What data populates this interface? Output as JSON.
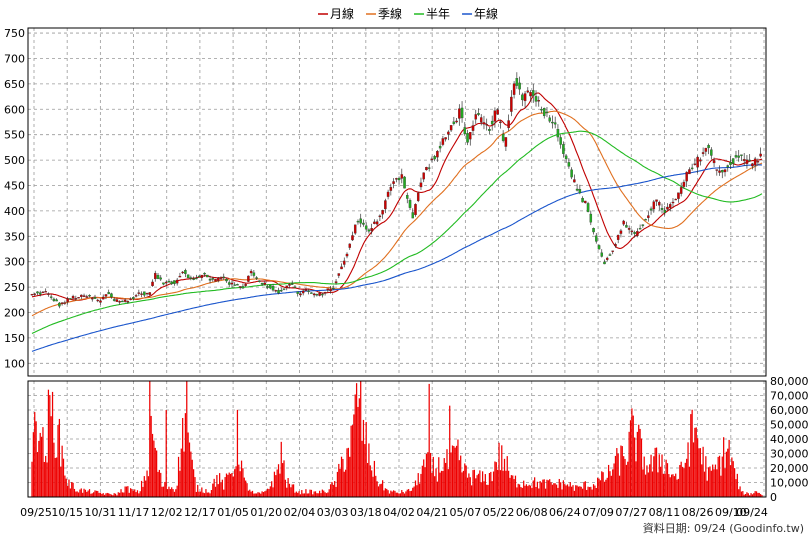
{
  "chart_data": {
    "type": "candlestick",
    "legend": [
      {
        "name": "月線",
        "color": "#c00000"
      },
      {
        "name": "季線",
        "color": "#e07020"
      },
      {
        "name": "半年",
        "color": "#22bb22"
      },
      {
        "name": "年線",
        "color": "#1a55cc"
      }
    ],
    "legend_position": "top-center",
    "grid": true,
    "price_axis": {
      "min": 75,
      "max": 760,
      "ticks": [
        100,
        150,
        200,
        250,
        300,
        350,
        400,
        450,
        500,
        550,
        600,
        650,
        700,
        750
      ]
    },
    "volume_axis": {
      "max": 80000,
      "ticks": [
        0,
        10000,
        20000,
        30000,
        40000,
        50000,
        60000,
        70000,
        80000
      ],
      "tick_labels": [
        "0",
        "10,000",
        "20,000",
        "30,000",
        "40,000",
        "50,000",
        "60,000",
        "70,000",
        "80,000"
      ]
    },
    "x_ticks": [
      "09/25",
      "10/15",
      "10/31",
      "11/17",
      "12/02",
      "12/17",
      "01/05",
      "01/20",
      "02/04",
      "03/03",
      "03/18",
      "04/02",
      "04/21",
      "05/07",
      "05/22",
      "06/08",
      "06/24",
      "07/09",
      "07/27",
      "08/11",
      "08/26",
      "09/10",
      "09/24"
    ],
    "footer": "資料日期: 09/24  (Goodinfo.tw)",
    "colors": {
      "up": "#cc0000",
      "down": "#22aa22",
      "volume": "#ee0000"
    },
    "close_keypoints": [
      [
        0,
        235
      ],
      [
        10,
        240
      ],
      [
        20,
        215
      ],
      [
        30,
        230
      ],
      [
        40,
        232
      ],
      [
        50,
        222
      ],
      [
        55,
        240
      ],
      [
        60,
        225
      ],
      [
        70,
        222
      ],
      [
        78,
        238
      ],
      [
        85,
        235
      ],
      [
        90,
        275
      ],
      [
        95,
        258
      ],
      [
        105,
        260
      ],
      [
        110,
        282
      ],
      [
        118,
        262
      ],
      [
        125,
        278
      ],
      [
        130,
        262
      ],
      [
        140,
        270
      ],
      [
        145,
        255
      ],
      [
        155,
        250
      ],
      [
        160,
        285
      ],
      [
        165,
        262
      ],
      [
        170,
        255
      ],
      [
        180,
        240
      ],
      [
        190,
        258
      ],
      [
        195,
        235
      ],
      [
        200,
        245
      ],
      [
        207,
        232
      ],
      [
        215,
        242
      ],
      [
        220,
        250
      ],
      [
        228,
        300
      ],
      [
        238,
        385
      ],
      [
        245,
        360
      ],
      [
        255,
        390
      ],
      [
        263,
        460
      ],
      [
        270,
        470
      ],
      [
        278,
        385
      ],
      [
        285,
        470
      ],
      [
        295,
        510
      ],
      [
        305,
        560
      ],
      [
        313,
        600
      ],
      [
        318,
        530
      ],
      [
        325,
        590
      ],
      [
        333,
        560
      ],
      [
        340,
        600
      ],
      [
        345,
        520
      ],
      [
        352,
        660
      ],
      [
        358,
        625
      ],
      [
        365,
        640
      ],
      [
        372,
        600
      ],
      [
        380,
        580
      ],
      [
        390,
        505
      ],
      [
        398,
        440
      ],
      [
        405,
        410
      ],
      [
        412,
        340
      ],
      [
        418,
        295
      ],
      [
        425,
        330
      ],
      [
        432,
        375
      ],
      [
        440,
        350
      ],
      [
        448,
        385
      ],
      [
        455,
        420
      ],
      [
        462,
        400
      ],
      [
        470,
        420
      ],
      [
        478,
        470
      ],
      [
        485,
        495
      ],
      [
        493,
        530
      ],
      [
        500,
        480
      ],
      [
        508,
        485
      ],
      [
        515,
        510
      ],
      [
        520,
        500
      ],
      [
        527,
        495
      ],
      [
        533,
        510
      ]
    ],
    "volume_profile": [
      [
        0,
        30000
      ],
      [
        5,
        62000
      ],
      [
        9,
        25000
      ],
      [
        14,
        60000
      ],
      [
        18,
        45000
      ],
      [
        22,
        30000
      ],
      [
        26,
        10000
      ],
      [
        33,
        5000
      ],
      [
        40,
        4000
      ],
      [
        48,
        3000
      ],
      [
        55,
        2000
      ],
      [
        62,
        2000
      ],
      [
        68,
        6000
      ],
      [
        78,
        3000
      ],
      [
        85,
        20000
      ],
      [
        86,
        62000
      ],
      [
        90,
        30000
      ],
      [
        95,
        8000
      ],
      [
        105,
        6000
      ],
      [
        110,
        42000
      ],
      [
        113,
        68000
      ],
      [
        115,
        30000
      ],
      [
        120,
        6000
      ],
      [
        130,
        4000
      ],
      [
        135,
        14000
      ],
      [
        140,
        8000
      ],
      [
        148,
        22000
      ],
      [
        150,
        42000
      ],
      [
        155,
        10000
      ],
      [
        162,
        2000
      ],
      [
        170,
        3000
      ],
      [
        178,
        14000
      ],
      [
        182,
        30000
      ],
      [
        186,
        10000
      ],
      [
        195,
        3000
      ],
      [
        200,
        4000
      ],
      [
        207,
        3000
      ],
      [
        215,
        4000
      ],
      [
        222,
        10000
      ],
      [
        228,
        28000
      ],
      [
        234,
        40000
      ],
      [
        238,
        72000
      ],
      [
        242,
        45000
      ],
      [
        246,
        28000
      ],
      [
        252,
        12000
      ],
      [
        260,
        4000
      ],
      [
        267,
        3000
      ],
      [
        275,
        4000
      ],
      [
        280,
        8000
      ],
      [
        285,
        20000
      ],
      [
        290,
        22000
      ],
      [
        295,
        18000
      ],
      [
        300,
        24000
      ],
      [
        305,
        22000
      ],
      [
        310,
        30000
      ],
      [
        315,
        18000
      ],
      [
        320,
        14000
      ],
      [
        325,
        14000
      ],
      [
        330,
        12000
      ],
      [
        335,
        14000
      ],
      [
        340,
        28000
      ],
      [
        345,
        25000
      ],
      [
        350,
        12000
      ],
      [
        358,
        10000
      ],
      [
        365,
        10000
      ],
      [
        372,
        9000
      ],
      [
        380,
        9000
      ],
      [
        390,
        9000
      ],
      [
        398,
        6000
      ],
      [
        404,
        8000
      ],
      [
        410,
        8000
      ],
      [
        415,
        12000
      ],
      [
        420,
        14000
      ],
      [
        425,
        22000
      ],
      [
        430,
        26000
      ],
      [
        435,
        32000
      ],
      [
        438,
        44000
      ],
      [
        442,
        38000
      ],
      [
        446,
        28000
      ],
      [
        450,
        20000
      ],
      [
        455,
        24000
      ],
      [
        460,
        28000
      ],
      [
        465,
        18000
      ],
      [
        470,
        14000
      ],
      [
        475,
        18000
      ],
      [
        478,
        30000
      ],
      [
        482,
        44000
      ],
      [
        486,
        40000
      ],
      [
        490,
        26000
      ],
      [
        495,
        15000
      ],
      [
        500,
        20000
      ],
      [
        505,
        30000
      ],
      [
        508,
        34000
      ],
      [
        512,
        20000
      ],
      [
        518,
        3000
      ],
      [
        524,
        2000
      ],
      [
        530,
        4000
      ],
      [
        533,
        1500
      ]
    ],
    "spikes": [
      [
        12,
        74000
      ],
      [
        98,
        60000
      ],
      [
        113,
        80000
      ],
      [
        290,
        78000
      ],
      [
        305,
        63000
      ],
      [
        485,
        48000
      ]
    ]
  }
}
